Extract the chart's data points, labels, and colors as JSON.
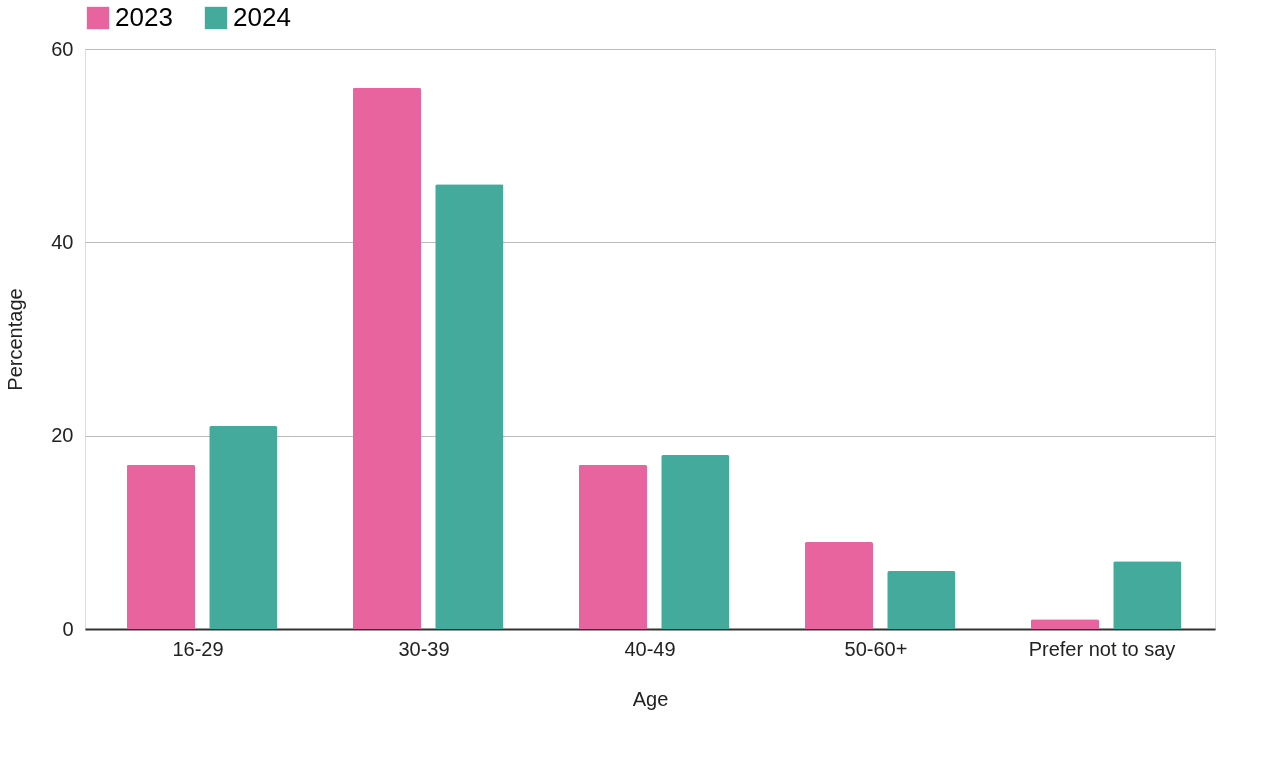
{
  "chart_data": {
    "type": "bar",
    "xlabel": "Age",
    "ylabel": "Percentage",
    "categories": [
      "16-29",
      "30-39",
      "40-49",
      "50-60+",
      "Prefer not to say"
    ],
    "series": [
      {
        "name": "2023",
        "color": "#e8649f",
        "values": [
          17,
          56,
          17,
          9,
          1
        ]
      },
      {
        "name": "2024",
        "color": "#43aa9c",
        "values": [
          21,
          46,
          18,
          6,
          7
        ]
      }
    ],
    "ylim": [
      0,
      60
    ],
    "yticks": [
      0,
      20,
      40,
      60
    ],
    "grid": "y",
    "legend": "top"
  }
}
